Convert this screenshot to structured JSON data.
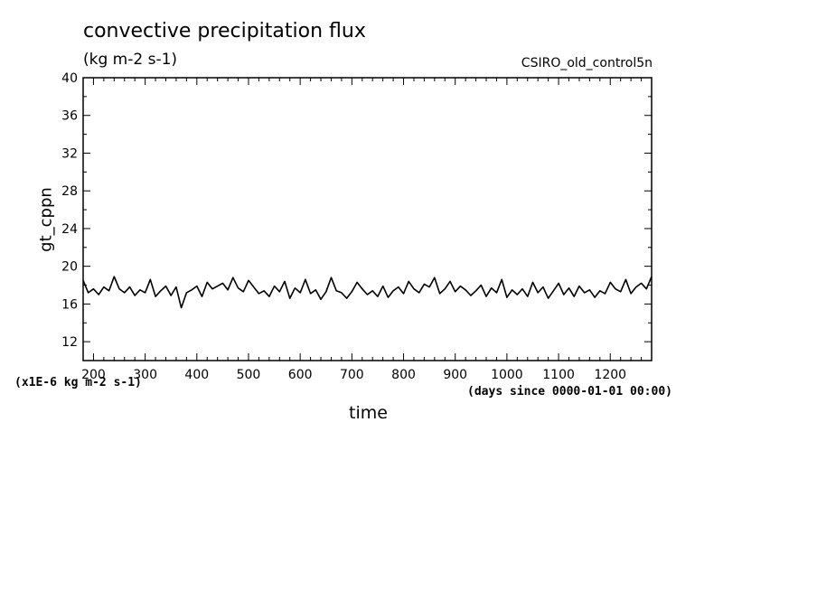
{
  "header": {
    "title": "convective precipitation flux",
    "subtitle": "(kg m-2 s-1)",
    "source": "CSIRO_old_control5n"
  },
  "axes": {
    "units_note": "(x1E-6 kg m-2 s-1)",
    "time_note": "(days since 0000-01-01 00:00)"
  },
  "chart_data": {
    "type": "line",
    "title": "convective precipitation flux",
    "subtitle": "(kg m-2 s-1)",
    "xlabel": "time",
    "ylabel": "gt_cppn",
    "xlim": [
      180,
      1280
    ],
    "ylim": [
      10,
      40
    ],
    "x_ticks": [
      200,
      300,
      400,
      500,
      600,
      700,
      800,
      900,
      1000,
      1100,
      1200
    ],
    "y_ticks": [
      12,
      16,
      20,
      24,
      28,
      32,
      36,
      40
    ],
    "grid": false,
    "color": "#000000",
    "series": [
      {
        "x": [
          180,
          190,
          200,
          210,
          220,
          230,
          240,
          250,
          260,
          270,
          280,
          290,
          300,
          310,
          320,
          330,
          340,
          350,
          360,
          370,
          380,
          390,
          400,
          410,
          420,
          430,
          440,
          450,
          460,
          470,
          480,
          490,
          500,
          510,
          520,
          530,
          540,
          550,
          560,
          570,
          580,
          590,
          600,
          610,
          620,
          630,
          640,
          650,
          660,
          670,
          680,
          690,
          700,
          710,
          720,
          730,
          740,
          750,
          760,
          770,
          780,
          790,
          800,
          810,
          820,
          830,
          840,
          850,
          860,
          870,
          880,
          890,
          900,
          910,
          920,
          930,
          940,
          950,
          960,
          970,
          980,
          990,
          1000,
          1010,
          1020,
          1030,
          1040,
          1050,
          1060,
          1070,
          1080,
          1090,
          1100,
          1110,
          1120,
          1130,
          1140,
          1150,
          1160,
          1170,
          1180,
          1190,
          1200,
          1210,
          1220,
          1230,
          1240,
          1250,
          1260,
          1270,
          1280
        ],
        "values": [
          18.5,
          17.2,
          17.6,
          17.0,
          17.8,
          17.4,
          18.9,
          17.6,
          17.2,
          17.8,
          16.9,
          17.5,
          17.2,
          18.6,
          16.8,
          17.4,
          17.9,
          16.9,
          17.8,
          15.6,
          17.2,
          17.5,
          17.9,
          16.8,
          18.3,
          17.6,
          17.9,
          18.2,
          17.5,
          18.8,
          17.7,
          17.3,
          18.5,
          17.8,
          17.1,
          17.4,
          16.8,
          17.9,
          17.3,
          18.4,
          16.6,
          17.7,
          17.2,
          18.6,
          17.1,
          17.5,
          16.5,
          17.3,
          18.8,
          17.4,
          17.2,
          16.6,
          17.3,
          18.3,
          17.6,
          17.0,
          17.4,
          16.8,
          17.9,
          16.7,
          17.4,
          17.8,
          17.1,
          18.4,
          17.6,
          17.2,
          18.1,
          17.8,
          18.8,
          17.1,
          17.6,
          18.4,
          17.3,
          17.9,
          17.5,
          16.9,
          17.4,
          18.0,
          16.8,
          17.7,
          17.2,
          18.6,
          16.7,
          17.5,
          17.0,
          17.6,
          16.8,
          18.3,
          17.2,
          17.8,
          16.6,
          17.4,
          18.2,
          17.0,
          17.7,
          16.8,
          17.9,
          17.2,
          17.5,
          16.7,
          17.4,
          17.1,
          18.3,
          17.6,
          17.3,
          18.6,
          17.1,
          17.8,
          18.2,
          17.6,
          18.9
        ]
      }
    ]
  }
}
